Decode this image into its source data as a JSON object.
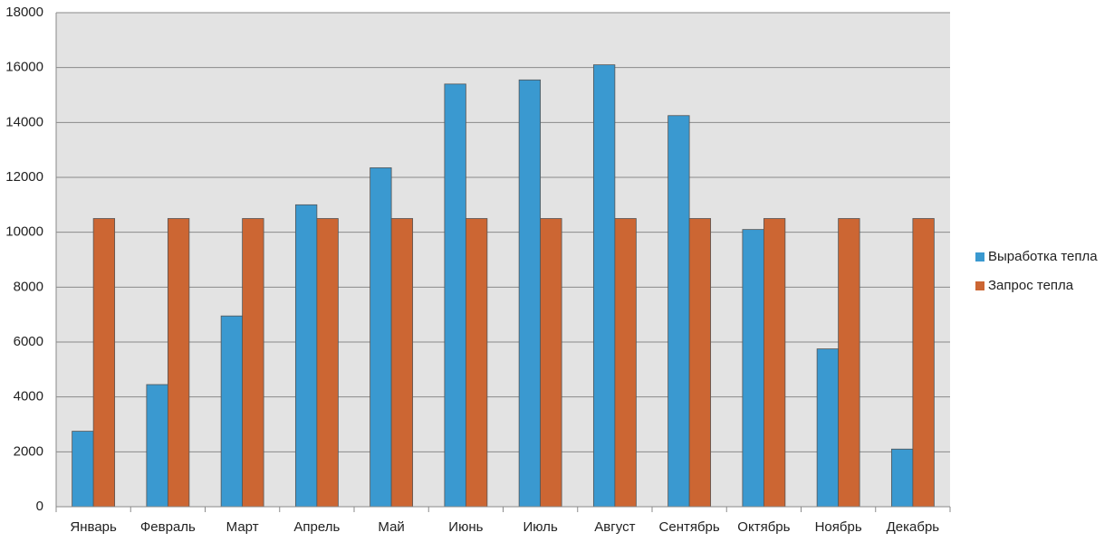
{
  "chart_data": {
    "type": "bar",
    "categories": [
      "Январь",
      "Февраль",
      "Март",
      "Апрель",
      "Май",
      "Июнь",
      "Июль",
      "Август",
      "Сентябрь",
      "Октябрь",
      "Ноябрь",
      "Декабрь"
    ],
    "series": [
      {
        "name": "Выработка тепла",
        "color": "#3a99d0",
        "values": [
          2750,
          4450,
          6950,
          11000,
          12350,
          15400,
          15550,
          16100,
          14250,
          10100,
          5750,
          2100
        ]
      },
      {
        "name": "Запрос тепла",
        "color": "#cc6633",
        "values": [
          10500,
          10500,
          10500,
          10500,
          10500,
          10500,
          10500,
          10500,
          10500,
          10500,
          10500,
          10500
        ]
      }
    ],
    "ylim": [
      0,
      18000
    ],
    "yticks": [
      0,
      2000,
      4000,
      6000,
      8000,
      10000,
      12000,
      14000,
      16000,
      18000
    ],
    "grid": true,
    "legend": "right"
  }
}
